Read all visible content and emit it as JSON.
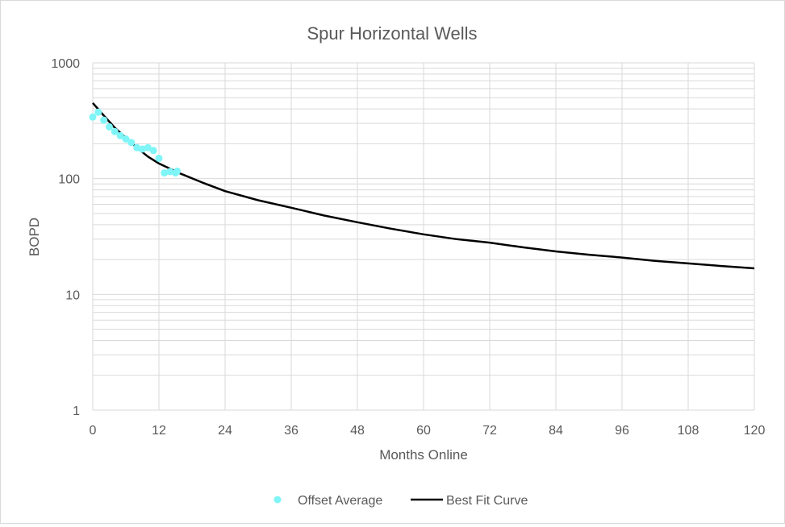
{
  "chart_data": {
    "type": "scatter",
    "title": "Spur Horizontal Wells",
    "xlabel": "Months Online",
    "ylabel": "BOPD",
    "xlim": [
      0,
      120
    ],
    "ylim": [
      1,
      1000
    ],
    "y_scale": "log",
    "grid": true,
    "legend_position": "bottom",
    "x_ticks": [
      "0",
      "12",
      "24",
      "36",
      "48",
      "60",
      "72",
      "84",
      "96",
      "108",
      "120"
    ],
    "y_ticks": [
      "1",
      "10",
      "100",
      "1000"
    ],
    "series": [
      {
        "name": "Offset Average",
        "kind": "scatter",
        "color": "#7ff5f7",
        "points": [
          [
            0,
            340
          ],
          [
            1,
            375
          ],
          [
            2,
            320
          ],
          [
            3,
            280
          ],
          [
            4,
            255
          ],
          [
            5,
            235
          ],
          [
            6,
            220
          ],
          [
            7,
            205
          ],
          [
            8,
            185
          ],
          [
            9,
            180
          ],
          [
            10,
            185
          ],
          [
            11,
            175
          ],
          [
            12,
            150
          ],
          [
            13,
            112
          ],
          [
            14,
            115
          ],
          [
            15,
            112
          ],
          [
            15.3,
            116
          ]
        ]
      },
      {
        "name": "Best Fit Curve",
        "kind": "line",
        "color": "#000000",
        "points": [
          [
            0,
            450
          ],
          [
            2,
            350
          ],
          [
            4,
            275
          ],
          [
            6,
            225
          ],
          [
            8,
            185
          ],
          [
            10,
            155
          ],
          [
            12,
            135
          ],
          [
            16,
            110
          ],
          [
            20,
            92
          ],
          [
            24,
            78
          ],
          [
            30,
            65
          ],
          [
            36,
            56
          ],
          [
            42,
            48
          ],
          [
            48,
            42
          ],
          [
            54,
            37
          ],
          [
            60,
            33
          ],
          [
            66,
            30
          ],
          [
            72,
            28
          ],
          [
            78,
            25.5
          ],
          [
            84,
            23.5
          ],
          [
            90,
            22
          ],
          [
            96,
            20.8
          ],
          [
            102,
            19.5
          ],
          [
            108,
            18.5
          ],
          [
            114,
            17.6
          ],
          [
            120,
            16.8
          ]
        ]
      }
    ]
  }
}
